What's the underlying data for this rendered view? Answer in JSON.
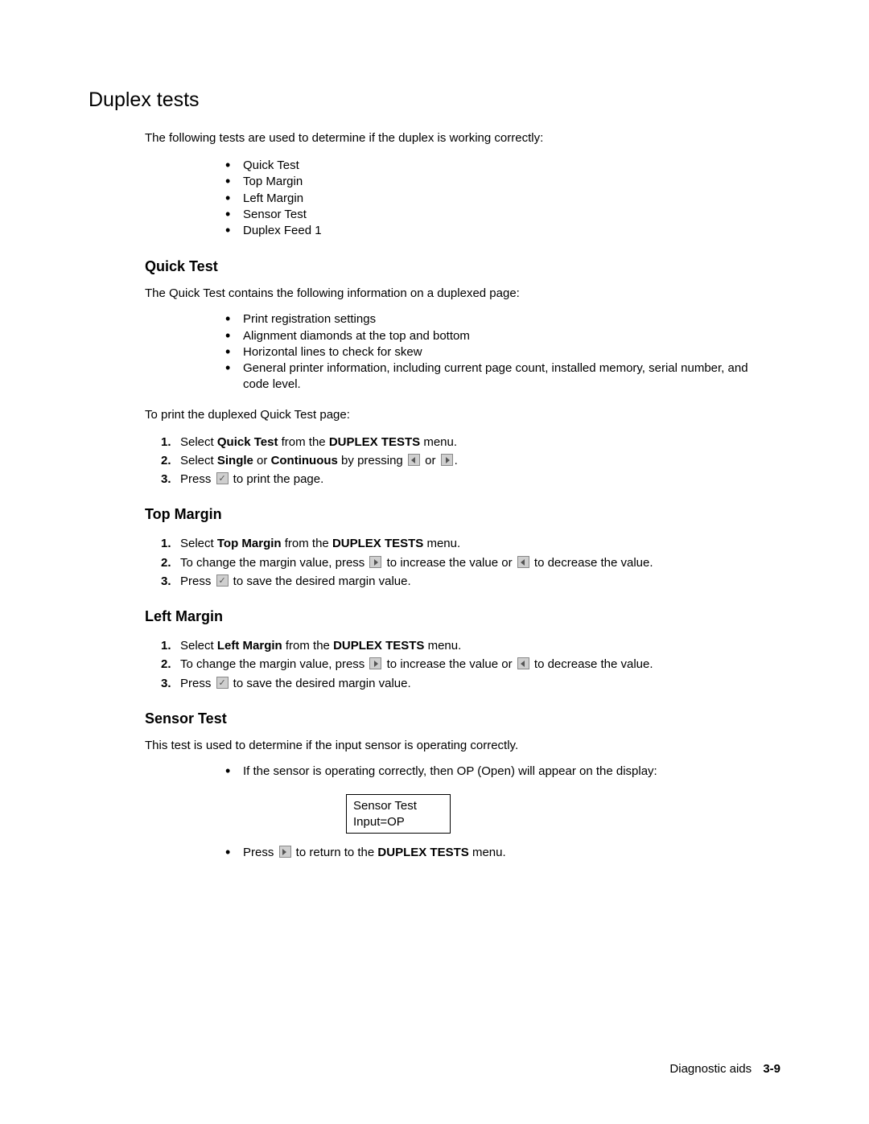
{
  "title": "Duplex tests",
  "intro": "The following tests are used to determine if the duplex is working correctly:",
  "tests_list": [
    "Quick Test",
    "Top Margin",
    "Left Margin",
    "Sensor Test",
    "Duplex Feed 1"
  ],
  "quick_test": {
    "heading": "Quick Test",
    "intro": "The Quick Test contains the following information on a duplexed page:",
    "bullets": [
      "Print registration settings",
      "Alignment diamonds at the top and bottom",
      "Horizontal lines to check for skew",
      "General printer information, including current page count, installed memory, serial number, and code level."
    ],
    "print_intro": "To print the duplexed Quick Test page:",
    "steps": {
      "s1_a": "Select ",
      "s1_b": "Quick Test",
      "s1_c": " from the ",
      "s1_d": "DUPLEX TESTS",
      "s1_e": " menu.",
      "s2_a": "Select ",
      "s2_b": "Single",
      "s2_c": " or ",
      "s2_d": "Continuous",
      "s2_e": " by pressing ",
      "s2_f": " or ",
      "s2_g": ".",
      "s3_a": "Press ",
      "s3_b": " to print the page."
    }
  },
  "top_margin": {
    "heading": "Top Margin",
    "steps": {
      "s1_a": "Select ",
      "s1_b": "Top Margin",
      "s1_c": " from the ",
      "s1_d": "DUPLEX TESTS",
      "s1_e": " menu.",
      "s2_a": "To change the margin value, press ",
      "s2_b": " to increase the value or ",
      "s2_c": " to decrease the value.",
      "s3_a": "Press ",
      "s3_b": " to save the desired margin value."
    }
  },
  "left_margin": {
    "heading": "Left Margin",
    "steps": {
      "s1_a": "Select ",
      "s1_b": "Left Margin",
      "s1_c": " from the ",
      "s1_d": "DUPLEX TESTS",
      "s1_e": " menu.",
      "s2_a": "To change the margin value, press ",
      "s2_b": " to increase the value or ",
      "s2_c": " to decrease the value.",
      "s3_a": "Press ",
      "s3_b": " to save the desired margin value."
    }
  },
  "sensor_test": {
    "heading": "Sensor Test",
    "intro": "This test is used to determine if the input sensor is operating correctly.",
    "bullet1": "If the sensor is operating correctly, then OP (Open) will appear on the display:",
    "box_line1": "Sensor Test",
    "box_line2": "Input=OP",
    "bullet2_a": "Press ",
    "bullet2_b": " to return to the ",
    "bullet2_c": "DUPLEX TESTS",
    "bullet2_d": " menu."
  },
  "footer": {
    "label": "Diagnostic aids",
    "page": "3-9"
  }
}
